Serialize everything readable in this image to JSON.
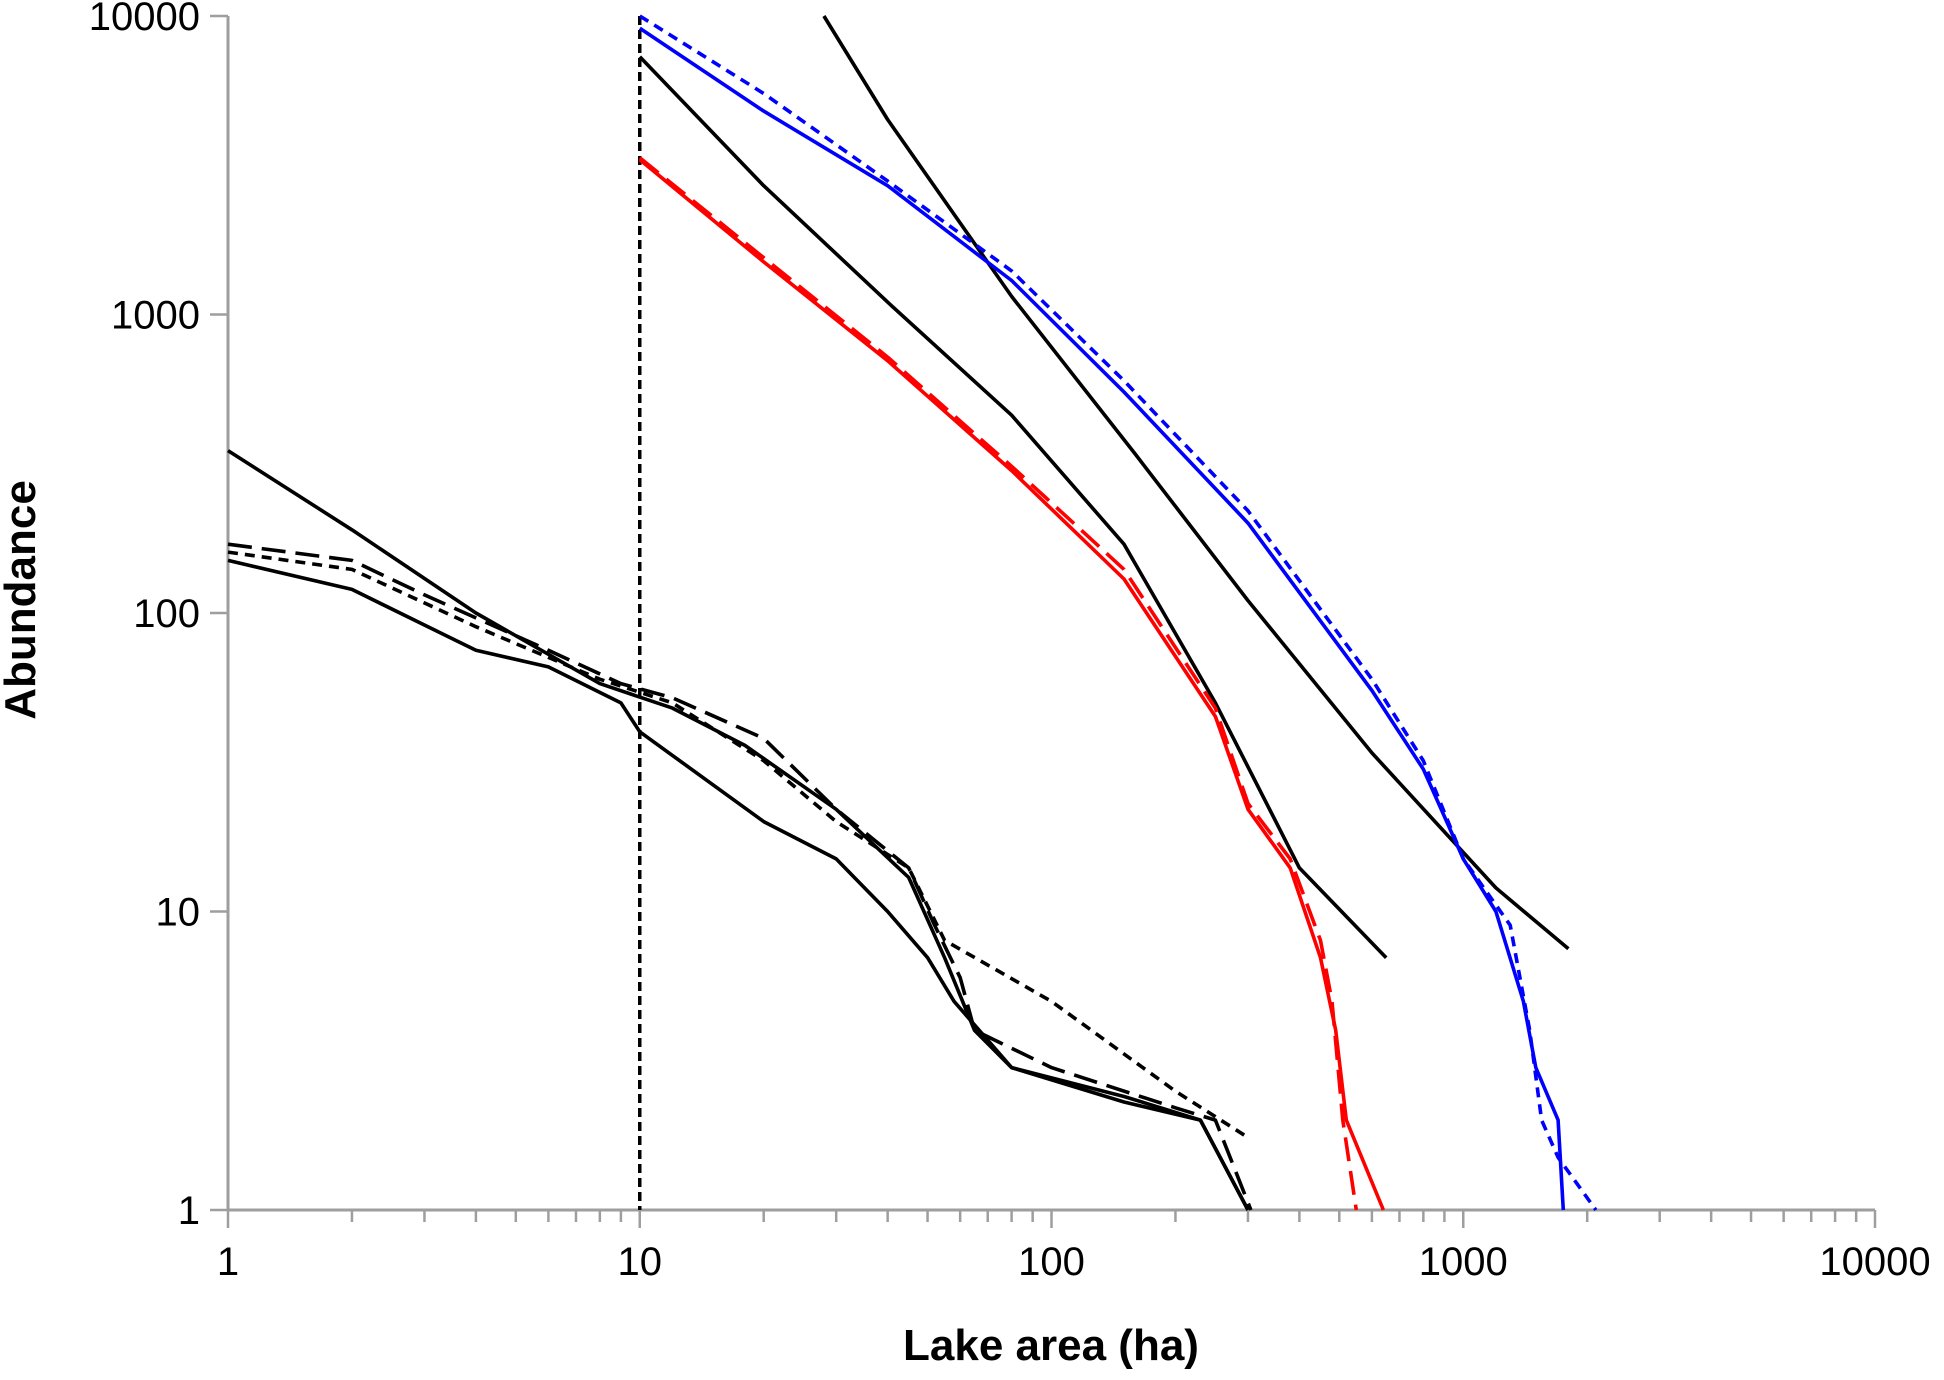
{
  "chart_data": {
    "type": "line",
    "title": "",
    "xlabel": "Lake area (ha)",
    "ylabel": "Abundance",
    "xscale": "log",
    "yscale": "log",
    "xlim": [
      1,
      10000
    ],
    "ylim": [
      1,
      10000
    ],
    "xticks": [
      "1",
      "10",
      "100",
      "1000",
      "10000"
    ],
    "yticks": [
      "1",
      "10",
      "100",
      "1000",
      "10000"
    ],
    "grid": false,
    "legend": "none",
    "reference_line": {
      "x": 10,
      "color": "#000000",
      "dash": "dashed"
    },
    "series": [
      {
        "color": "#000000",
        "dash": "solid",
        "points": [
          [
            1,
            350
          ],
          [
            2,
            190
          ],
          [
            4,
            100
          ],
          [
            8,
            58
          ],
          [
            12,
            48
          ],
          [
            18,
            36
          ],
          [
            30,
            22
          ],
          [
            45,
            13
          ],
          [
            55,
            7
          ],
          [
            65,
            4
          ],
          [
            80,
            3
          ],
          [
            150,
            2.3
          ],
          [
            230,
            2
          ],
          [
            300,
            1
          ]
        ]
      },
      {
        "color": "#000000",
        "dash": "solid",
        "points": [
          [
            1,
            150
          ],
          [
            2,
            120
          ],
          [
            4,
            75
          ],
          [
            6,
            66
          ],
          [
            9,
            50
          ],
          [
            10,
            40
          ],
          [
            20,
            20
          ],
          [
            30,
            15
          ],
          [
            40,
            10
          ],
          [
            50,
            7
          ],
          [
            58,
            5
          ],
          [
            80,
            3
          ],
          [
            150,
            2.4
          ],
          [
            230,
            2
          ],
          [
            300,
            1
          ]
        ]
      },
      {
        "color": "#000000",
        "dash": "long-dash",
        "points": [
          [
            1,
            170
          ],
          [
            2,
            150
          ],
          [
            3,
            115
          ],
          [
            6,
            75
          ],
          [
            9,
            58
          ],
          [
            12,
            52
          ],
          [
            20,
            38
          ],
          [
            30,
            22
          ],
          [
            45,
            14
          ],
          [
            52,
            9
          ],
          [
            60,
            6
          ],
          [
            65,
            4
          ],
          [
            100,
            3
          ],
          [
            200,
            2.2
          ],
          [
            250,
            2
          ],
          [
            305,
            1
          ]
        ]
      },
      {
        "color": "#000000",
        "dash": "short-dash",
        "points": [
          [
            1,
            160
          ],
          [
            2,
            140
          ],
          [
            4,
            90
          ],
          [
            8,
            60
          ],
          [
            12,
            50
          ],
          [
            20,
            32
          ],
          [
            30,
            20
          ],
          [
            45,
            14
          ],
          [
            55,
            8
          ],
          [
            100,
            5
          ],
          [
            200,
            2.5
          ],
          [
            300,
            1.75
          ]
        ]
      },
      {
        "color": "#000000",
        "dash": "solid",
        "points": [
          [
            10,
            7300
          ],
          [
            20,
            2700
          ],
          [
            40,
            1100
          ],
          [
            80,
            460
          ],
          [
            150,
            170
          ],
          [
            250,
            50
          ],
          [
            400,
            14
          ],
          [
            650,
            7
          ]
        ]
      },
      {
        "color": "#000000",
        "dash": "solid",
        "points": [
          [
            28,
            10000
          ],
          [
            40,
            4500
          ],
          [
            80,
            1150
          ],
          [
            160,
            340
          ],
          [
            300,
            110
          ],
          [
            600,
            34
          ],
          [
            1200,
            12
          ],
          [
            1800,
            7.5
          ]
        ]
      },
      {
        "color": "#ff0000",
        "dash": "solid",
        "points": [
          [
            10,
            3300
          ],
          [
            20,
            1500
          ],
          [
            40,
            700
          ],
          [
            80,
            300
          ],
          [
            150,
            130
          ],
          [
            250,
            45
          ],
          [
            300,
            22
          ],
          [
            380,
            14
          ],
          [
            450,
            7
          ],
          [
            490,
            4
          ],
          [
            520,
            2
          ],
          [
            640,
            1
          ]
        ]
      },
      {
        "color": "#ff0000",
        "dash": "long-dash",
        "points": [
          [
            10,
            3350
          ],
          [
            20,
            1550
          ],
          [
            40,
            720
          ],
          [
            80,
            310
          ],
          [
            150,
            140
          ],
          [
            250,
            48
          ],
          [
            300,
            23
          ],
          [
            380,
            15
          ],
          [
            450,
            8
          ],
          [
            480,
            5
          ],
          [
            510,
            2
          ],
          [
            550,
            1
          ]
        ]
      },
      {
        "color": "#0000ff",
        "dash": "solid",
        "points": [
          [
            10,
            9100
          ],
          [
            20,
            4800
          ],
          [
            40,
            2700
          ],
          [
            80,
            1300
          ],
          [
            150,
            550
          ],
          [
            300,
            200
          ],
          [
            600,
            55
          ],
          [
            800,
            30
          ],
          [
            1000,
            15
          ],
          [
            1200,
            10
          ],
          [
            1400,
            5
          ],
          [
            1500,
            3
          ],
          [
            1700,
            2
          ],
          [
            1750,
            1
          ]
        ]
      },
      {
        "color": "#0000ff",
        "dash": "short-dash",
        "points": [
          [
            10,
            10000
          ],
          [
            20,
            5500
          ],
          [
            40,
            2800
          ],
          [
            80,
            1400
          ],
          [
            150,
            600
          ],
          [
            300,
            220
          ],
          [
            600,
            60
          ],
          [
            800,
            32
          ],
          [
            1000,
            15
          ],
          [
            1300,
            9
          ],
          [
            1450,
            4
          ],
          [
            1550,
            2
          ],
          [
            1700,
            1.5
          ],
          [
            2100,
            1
          ]
        ]
      }
    ]
  }
}
